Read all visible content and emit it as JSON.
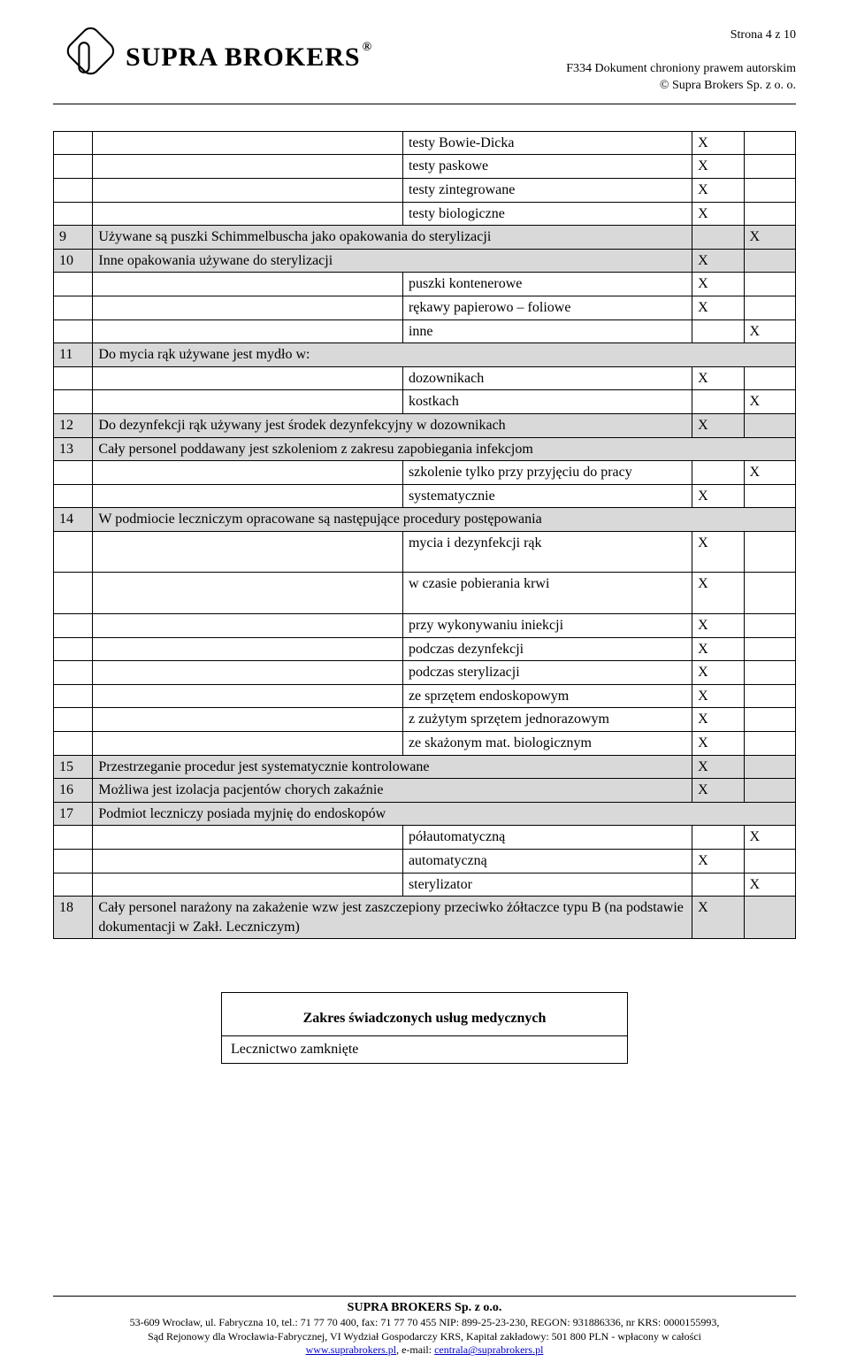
{
  "header": {
    "brand": "SUPRA BROKERS",
    "page_info": "Strona 4 z 10",
    "doc_line1": "F334 Dokument chroniony prawem autorskim",
    "doc_line2": "© Supra Brokers Sp. z o. o."
  },
  "rows": [
    {
      "kind": "sub",
      "label": "testy Bowie-Dicka",
      "x1": "X",
      "x2": ""
    },
    {
      "kind": "sub",
      "label": "testy paskowe",
      "x1": "X",
      "x2": ""
    },
    {
      "kind": "sub",
      "label": "testy zintegrowane",
      "x1": "X",
      "x2": ""
    },
    {
      "kind": "sub",
      "label": "testy biologiczne",
      "x1": "X",
      "x2": ""
    },
    {
      "kind": "section",
      "num": "9",
      "label": "Używane są puszki Schimmelbuscha jako opakowania do sterylizacji",
      "x1": "",
      "x2": "X"
    },
    {
      "kind": "section",
      "num": "10",
      "label": "Inne opakowania używane do sterylizacji",
      "x1": "X",
      "x2": ""
    },
    {
      "kind": "sub",
      "label": "puszki kontenerowe",
      "x1": "X",
      "x2": ""
    },
    {
      "kind": "sub",
      "label": "rękawy papierowo – foliowe",
      "x1": "X",
      "x2": ""
    },
    {
      "kind": "sub",
      "label": "inne",
      "x1": "",
      "x2": "X"
    },
    {
      "kind": "section-span",
      "num": "11",
      "label": "Do mycia rąk używane jest mydło w:"
    },
    {
      "kind": "sub",
      "label": "dozownikach",
      "x1": "X",
      "x2": ""
    },
    {
      "kind": "sub",
      "label": "kostkach",
      "x1": "",
      "x2": "X"
    },
    {
      "kind": "section",
      "num": "12",
      "label": "Do dezynfekcji rąk używany jest środek dezynfekcyjny w dozownikach",
      "x1": "X",
      "x2": ""
    },
    {
      "kind": "section-span",
      "num": "13",
      "label": "Cały personel poddawany jest szkoleniom z zakresu zapobiegania infekcjom"
    },
    {
      "kind": "sub",
      "label": "szkolenie tylko przy przyjęciu do pracy",
      "x1": "",
      "x2": "X"
    },
    {
      "kind": "sub",
      "label": "systematycznie",
      "x1": "X",
      "x2": ""
    },
    {
      "kind": "section-span",
      "num": "14",
      "label": "W podmiocie leczniczym opracowane są następujące procedury postępowania"
    },
    {
      "kind": "sub",
      "label": "mycia i dezynfekcji rąk",
      "x1": "X",
      "x2": "",
      "tall": true
    },
    {
      "kind": "sub",
      "label": "w czasie pobierania krwi",
      "x1": "X",
      "x2": "",
      "tall": true
    },
    {
      "kind": "sub",
      "label": "przy wykonywaniu iniekcji",
      "x1": "X",
      "x2": ""
    },
    {
      "kind": "sub",
      "label": "podczas dezynfekcji",
      "x1": "X",
      "x2": ""
    },
    {
      "kind": "sub",
      "label": "podczas sterylizacji",
      "x1": "X",
      "x2": ""
    },
    {
      "kind": "sub",
      "label": "ze sprzętem endoskopowym",
      "x1": "X",
      "x2": ""
    },
    {
      "kind": "sub",
      "label": "z zużytym sprzętem jednorazowym",
      "x1": "X",
      "x2": ""
    },
    {
      "kind": "sub",
      "label": "ze skażonym mat. biologicznym",
      "x1": "X",
      "x2": ""
    },
    {
      "kind": "section",
      "num": "15",
      "label": "Przestrzeganie procedur jest systematycznie kontrolowane",
      "x1": "X",
      "x2": ""
    },
    {
      "kind": "section",
      "num": "16",
      "label": "Możliwa jest izolacja pacjentów chorych zakaźnie",
      "x1": "X",
      "x2": ""
    },
    {
      "kind": "section-span",
      "num": "17",
      "label": "Podmiot leczniczy posiada myjnię do endoskopów"
    },
    {
      "kind": "sub",
      "label": "półautomatyczną",
      "x1": "",
      "x2": "X"
    },
    {
      "kind": "sub",
      "label": "automatyczną",
      "x1": "X",
      "x2": ""
    },
    {
      "kind": "sub",
      "label": "sterylizator",
      "x1": "",
      "x2": "X"
    },
    {
      "kind": "section",
      "num": "18",
      "label": "Cały personel narażony na zakażenie wzw jest zaszczepiony przeciwko żółtaczce typu B (na podstawie dokumentacji w Zakł. Leczniczym)",
      "x1": "X",
      "x2": ""
    }
  ],
  "footer_box": {
    "title": "Zakres świadczonych usług medycznych",
    "row1": "Lecznictwo zamknięte"
  },
  "footer": {
    "company": "SUPRA BROKERS Sp. z o.o.",
    "line1": "53-609 Wrocław, ul. Fabryczna 10, tel.: 71 77 70 400, fax: 71 77 70 455 NIP: 899-25-23-230, REGON: 931886336, nr KRS: 0000155993,",
    "line2": "Sąd Rejonowy dla Wrocławia-Fabrycznej, VI Wydział Gospodarczy KRS, Kapitał zakładowy: 501 800 PLN - wpłacony w całości",
    "link1_label": "www.suprabrokers.pl",
    "sep": ", e-mail: ",
    "link2_label": "centrala@suprabrokers.pl"
  }
}
